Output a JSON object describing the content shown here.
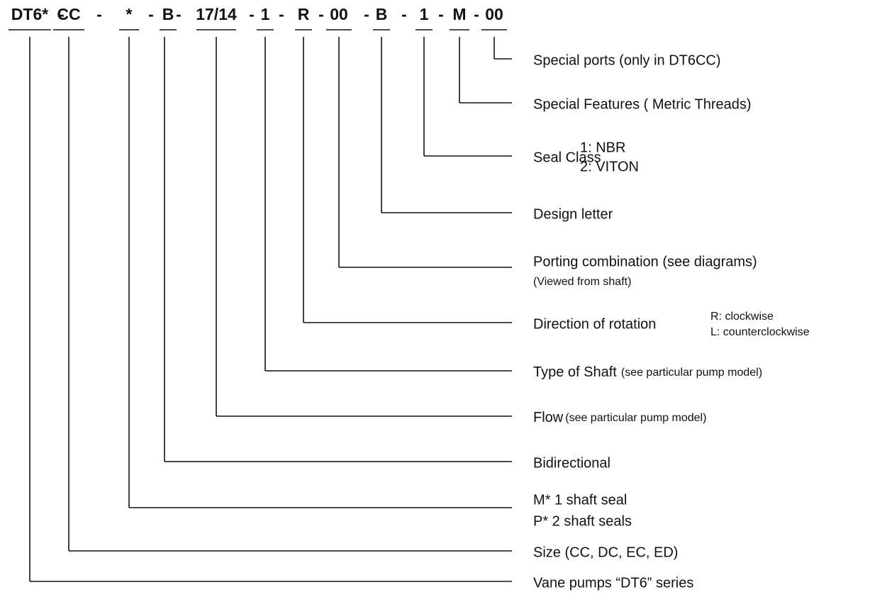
{
  "code": {
    "separator": "-",
    "segments": [
      "DT6*",
      "CC",
      "*",
      "B",
      "17/14",
      "1",
      "R",
      "00",
      "B",
      "1",
      "M",
      "00"
    ]
  },
  "fields": [
    {
      "label": "Vane pumps “DT6” series"
    },
    {
      "label": "Size (CC, DC, EC, ED)"
    },
    {
      "lines": [
        "M* 1 shaft seal",
        "P* 2 shaft seals"
      ]
    },
    {
      "label": "Bidirectional"
    },
    {
      "label": "Flow",
      "note": "(see particular pump model)"
    },
    {
      "label": "Type of Shaft",
      "note": "(see particular pump model)"
    },
    {
      "label": "Direction of rotation",
      "options": [
        "R: clockwise",
        "L: counterclockwise"
      ]
    },
    {
      "label": "Porting combination (see diagrams)",
      "note": "(Viewed from shaft)"
    },
    {
      "label": "Design letter"
    },
    {
      "label": "Seal Class",
      "options": [
        "1: NBR",
        "2: VITON"
      ]
    },
    {
      "label": "Special Features ( Metric Threads)"
    },
    {
      "label": "Special ports (only in DT6CC)"
    }
  ]
}
